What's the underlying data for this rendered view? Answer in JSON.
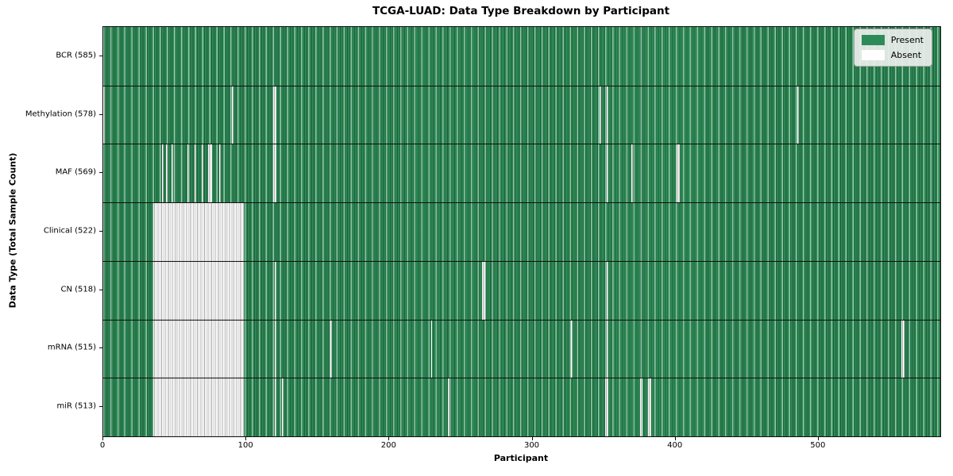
{
  "title": "TCGA-LUAD: Data Type Breakdown by Participant",
  "axes": {
    "x_label": "Participant",
    "y_label": "Data Type (Total Sample Count)"
  },
  "legend": {
    "present_label": "Present",
    "absent_label": "Absent"
  },
  "colors": {
    "present": "#2e8b57",
    "present_edge": "#1d5c39",
    "absent": "#ffffff",
    "absent_edge": "#ababab",
    "legend_background": "#ebeeeb"
  },
  "chart_data": {
    "type": "heatmap",
    "title": "TCGA-LUAD: Data Type Breakdown by Participant",
    "xlabel": "Participant",
    "ylabel": "Data Type (Total Sample Count)",
    "x_range": [
      0,
      585
    ],
    "x_ticks": [
      0,
      100,
      200,
      300,
      400,
      500
    ],
    "grid": false,
    "legend_position": "upper right",
    "legend_entries": [
      "Present",
      "Absent"
    ],
    "value_encoding": {
      "present": "seagreen cell",
      "absent": "white cell"
    },
    "rows": [
      {
        "label": "BCR (585)",
        "present_count": 585,
        "absent_count": 0,
        "absent_segments": []
      },
      {
        "label": "Methylation (578)",
        "present_count": 578,
        "absent_count": 7,
        "absent_segments": [
          [
            0,
            1
          ],
          [
            90,
            1
          ],
          [
            119,
            2
          ],
          [
            347,
            1
          ],
          [
            352,
            1
          ],
          [
            485,
            1
          ]
        ]
      },
      {
        "label": "MAF (569)",
        "present_count": 569,
        "absent_count": 16,
        "absent_segments": [
          [
            41,
            1
          ],
          [
            44,
            1
          ],
          [
            48,
            1
          ],
          [
            59,
            1
          ],
          [
            64,
            1
          ],
          [
            69,
            1
          ],
          [
            73,
            3
          ],
          [
            81,
            1
          ],
          [
            119,
            2
          ],
          [
            352,
            1
          ],
          [
            369,
            1
          ],
          [
            401,
            2
          ]
        ]
      },
      {
        "label": "Clinical (522)",
        "present_count": 522,
        "absent_count": 63,
        "absent_segments": [
          [
            35,
            63
          ]
        ]
      },
      {
        "label": "CN (518)",
        "present_count": 518,
        "absent_count": 67,
        "absent_segments": [
          [
            35,
            63
          ],
          [
            120,
            1
          ],
          [
            265,
            2
          ],
          [
            352,
            1
          ]
        ]
      },
      {
        "label": "mRNA (515)",
        "present_count": 515,
        "absent_count": 70,
        "absent_segments": [
          [
            35,
            63
          ],
          [
            120,
            1
          ],
          [
            159,
            1
          ],
          [
            229,
            1
          ],
          [
            327,
            1
          ],
          [
            352,
            1
          ],
          [
            558,
            2
          ]
        ]
      },
      {
        "label": "miR (513)",
        "present_count": 513,
        "absent_count": 72,
        "absent_segments": [
          [
            35,
            63
          ],
          [
            120,
            1
          ],
          [
            125,
            1
          ],
          [
            241,
            1
          ],
          [
            351,
            2
          ],
          [
            375,
            2
          ],
          [
            381,
            2
          ]
        ]
      }
    ]
  }
}
